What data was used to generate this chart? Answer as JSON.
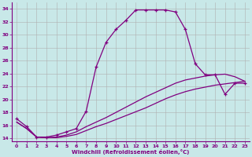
{
  "xlabel": "Windchill (Refroidissement éolien,°C)",
  "background_color": "#c8e8e8",
  "line_color": "#800080",
  "grid_color": "#b0b0b0",
  "xlim": [
    -0.5,
    23.5
  ],
  "ylim": [
    13.5,
    35
  ],
  "yticks": [
    14,
    16,
    18,
    20,
    22,
    24,
    26,
    28,
    30,
    32,
    34
  ],
  "xticks": [
    0,
    1,
    2,
    3,
    4,
    5,
    6,
    7,
    8,
    9,
    10,
    11,
    12,
    13,
    14,
    15,
    16,
    17,
    18,
    19,
    20,
    21,
    22,
    23
  ],
  "curve_main_x": [
    0,
    1,
    2,
    3,
    4,
    5,
    6,
    7,
    8,
    9,
    10,
    11,
    12,
    13,
    14,
    15,
    16,
    17,
    18,
    19,
    20,
    21,
    22,
    23
  ],
  "curve_main_y": [
    17.0,
    15.8,
    14.2,
    14.2,
    14.5,
    15.0,
    15.5,
    18.2,
    25.0,
    28.8,
    30.8,
    32.2,
    33.8,
    33.8,
    33.8,
    33.8,
    33.5,
    30.8,
    25.5,
    23.8,
    23.8,
    20.8,
    22.5,
    22.5
  ],
  "curve_line2_x": [
    0,
    1,
    2,
    3,
    4,
    5,
    6,
    7,
    8,
    9,
    10,
    11,
    12,
    13,
    14,
    15,
    16,
    17,
    18,
    19,
    20,
    21,
    22,
    23
  ],
  "curve_line2_y": [
    16.5,
    15.5,
    14.2,
    14.1,
    14.1,
    14.3,
    14.6,
    15.2,
    15.8,
    16.3,
    16.9,
    17.5,
    18.1,
    18.7,
    19.4,
    20.1,
    20.7,
    21.2,
    21.6,
    21.9,
    22.2,
    22.4,
    22.6,
    22.8
  ],
  "curve_line3_x": [
    0,
    1,
    2,
    3,
    4,
    5,
    6,
    7,
    8,
    9,
    10,
    11,
    12,
    13,
    14,
    15,
    16,
    17,
    18,
    19,
    20,
    21,
    22,
    23
  ],
  "curve_line3_y": [
    16.5,
    15.5,
    14.2,
    14.1,
    14.2,
    14.5,
    15.0,
    15.8,
    16.5,
    17.2,
    18.0,
    18.8,
    19.6,
    20.4,
    21.1,
    21.8,
    22.5,
    23.0,
    23.3,
    23.6,
    23.8,
    23.9,
    23.5,
    22.8
  ]
}
